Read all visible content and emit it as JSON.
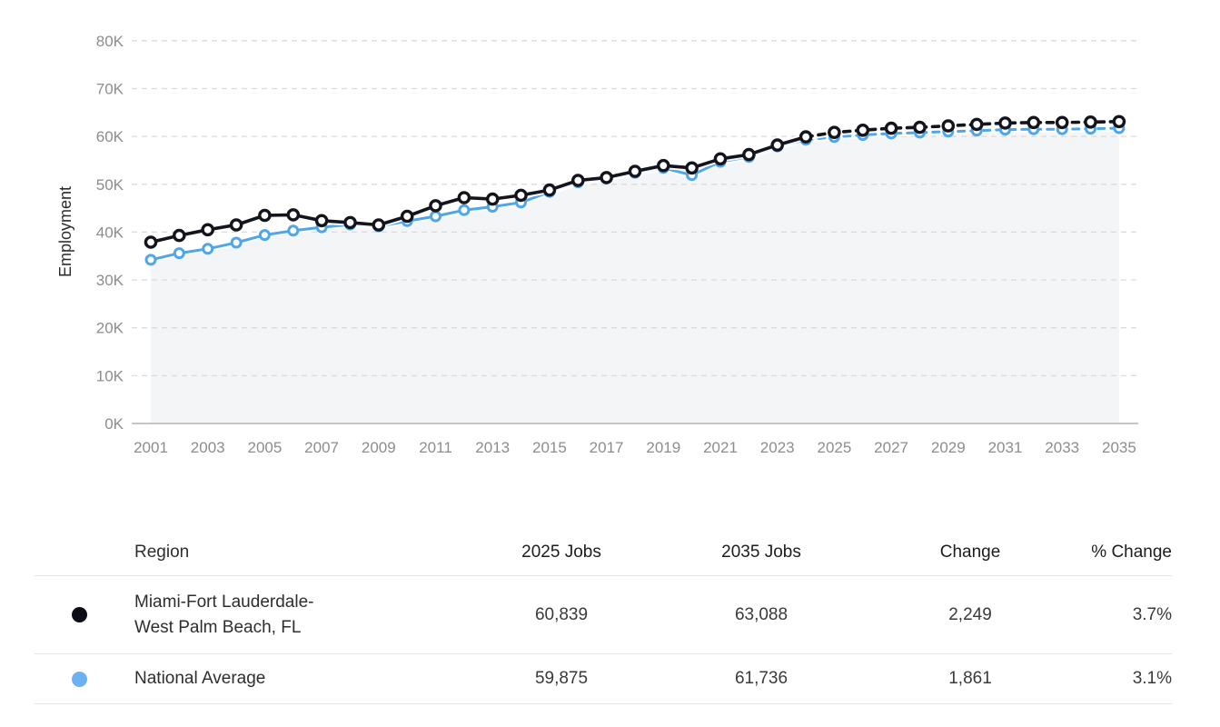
{
  "chart_data": {
    "type": "line",
    "title": "",
    "xlabel": "",
    "ylabel": "Employment",
    "ylim": [
      0,
      80000
    ],
    "grid": "horizontal-dashed",
    "legend_position": "table-below",
    "y_tick_labels": [
      "0K",
      "10K",
      "20K",
      "30K",
      "40K",
      "50K",
      "60K",
      "70K",
      "80K"
    ],
    "x": [
      2001,
      2002,
      2003,
      2004,
      2005,
      2006,
      2007,
      2008,
      2009,
      2010,
      2011,
      2012,
      2013,
      2014,
      2015,
      2016,
      2017,
      2018,
      2019,
      2020,
      2021,
      2022,
      2023,
      2024,
      2025,
      2026,
      2027,
      2028,
      2029,
      2030,
      2031,
      2032,
      2033,
      2034,
      2035
    ],
    "x_tick_labels": [
      "2001",
      "2003",
      "2005",
      "2007",
      "2009",
      "2011",
      "2013",
      "2015",
      "2017",
      "2019",
      "2021",
      "2023",
      "2025",
      "2027",
      "2029",
      "2031",
      "2033",
      "2035"
    ],
    "projection_start_year": 2024,
    "projection_style": "dashed",
    "series": [
      {
        "name": "Miami-Fort Lauderdale-West Palm Beach, FL",
        "color": "#14141c",
        "marker": "open-circle",
        "values": [
          37900,
          39300,
          40500,
          41500,
          43500,
          43600,
          42400,
          42000,
          41500,
          43300,
          45500,
          47200,
          46900,
          47700,
          48800,
          50800,
          51400,
          52700,
          53900,
          53400,
          55300,
          56200,
          58200,
          59900,
          60839,
          61300,
          61700,
          61900,
          62200,
          62500,
          62800,
          62900,
          62900,
          63000,
          63088
        ]
      },
      {
        "name": "National Average",
        "color": "#4fa6e8",
        "marker": "open-circle",
        "values": [
          34200,
          35600,
          36500,
          37800,
          39400,
          40300,
          41000,
          41600,
          41200,
          42300,
          43300,
          44600,
          45300,
          46200,
          48400,
          50400,
          51200,
          52400,
          53400,
          51900,
          54700,
          55700,
          57900,
          59300,
          59875,
          60300,
          60600,
          60800,
          61000,
          61200,
          61400,
          61500,
          61500,
          61600,
          61736
        ]
      }
    ],
    "area_fill_color": "#f4f5f7",
    "gridline_color": "#dbdbdb",
    "axis_line_color": "#c6c6c6",
    "tick_label_color": "#8d8d8d"
  },
  "table": {
    "headers": {
      "region": "Region",
      "jobs_2025": "2025 Jobs",
      "jobs_2035": "2035 Jobs",
      "change": "Change",
      "pct_change": "% Change"
    },
    "rows": [
      {
        "region_line1": "Miami-Fort Lauderdale-",
        "region_line2": "West Palm Beach, FL",
        "dot_color": "#0d0d15",
        "jobs_2025": "60,839",
        "jobs_2035": "63,088",
        "change": "2,249",
        "pct_change": "3.7%"
      },
      {
        "region_line1": "National Average",
        "region_line2": "",
        "dot_color": "#6cb2f2",
        "jobs_2025": "59,875",
        "jobs_2035": "61,736",
        "change": "1,861",
        "pct_change": "3.1%"
      }
    ]
  }
}
